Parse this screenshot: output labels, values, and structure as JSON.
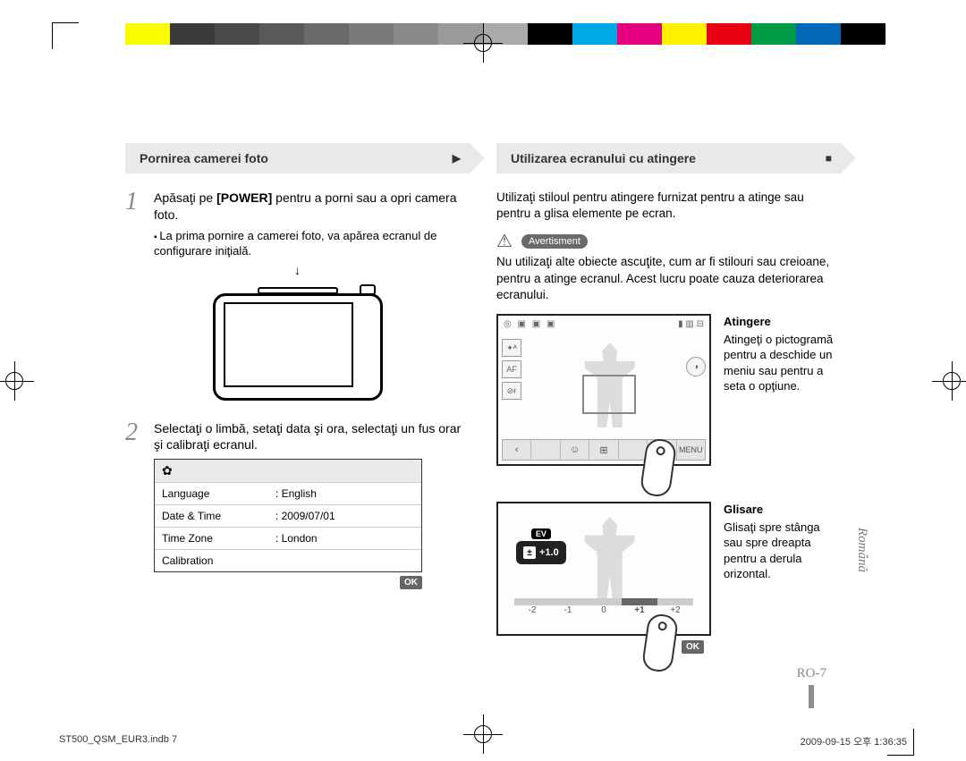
{
  "colorbar": [
    "#ffffff",
    "#fafa00",
    "#3a3a3a",
    "#4a4a4a",
    "#5a5a5a",
    "#6a6a6a",
    "#7a7a7a",
    "#8a8a8a",
    "#9a9a9a",
    "#aaaaaa",
    "#000000",
    "#00a9e6",
    "#e4007f",
    "#fff100",
    "#e60012",
    "#009944",
    "#0068b7",
    "#000000"
  ],
  "left": {
    "ribbon": "Pornirea camerei foto",
    "ribbon_glyph": "▶",
    "step1_num": "1",
    "step1_a": "Apăsaţi pe ",
    "step1_b": "[POWER]",
    "step1_c": " pentru a porni sau a opri camera foto.",
    "bullet1": "La prima pornire a camerei foto, va apărea ecranul de configurare iniţială.",
    "arrow": "↓",
    "step2_num": "2",
    "step2": "Selectaţi o limbă, setaţi data şi ora, selectaţi un fus orar şi calibraţi ecranul.",
    "settings": {
      "gear": "✿",
      "rows": [
        {
          "label": "Language",
          "value": "English"
        },
        {
          "label": "Date & Time",
          "value": "2009/07/01"
        },
        {
          "label": "Time Zone",
          "value": "London"
        },
        {
          "label": "Calibration",
          "value": ""
        }
      ],
      "ok": "OK"
    }
  },
  "right": {
    "ribbon": "Utilizarea ecranului cu atingere",
    "ribbon_glyph": "■",
    "intro": "Utilizaţi stiloul pentru atingere furnizat pentru a atinge sau pentru a glisa elemente pe ecran.",
    "avert_label": "Avertisment",
    "avert_text": "Nu utilizaţi alte obiecte ascuţite, cum ar fi stilouri sau creioane, pentru a atinge ecranul. Acest lucru poate cauza deteriorarea ecranului.",
    "touch": {
      "topicons": "◎ ▣ ▣ ▣",
      "topright": "▮ ▥ ⊟",
      "side": [
        "✦ᴬ",
        "AF",
        "⊘ғ"
      ],
      "rside": "◑",
      "bottom": [
        "‹",
        "",
        "☺",
        "⊞",
        "",
        "◉",
        "MENU"
      ],
      "heading": "Atingere",
      "text": "Atingeţi o pictogramă pentru a deschide un meniu sau pentru a seta o opţiune."
    },
    "swipe": {
      "ev_label": "EV",
      "ev_icon": "±",
      "ev_value": "+1.0",
      "scale": [
        {
          "l": "-2",
          "hot": false
        },
        {
          "l": "-1",
          "hot": false
        },
        {
          "l": "0",
          "hot": false
        },
        {
          "l": "+1",
          "hot": true
        },
        {
          "l": "+2",
          "hot": false
        }
      ],
      "ok": "OK",
      "heading": "Glisare",
      "text": "Glisaţi spre stânga sau spre dreapta pentru a derula orizontal."
    }
  },
  "side_lang": "Română",
  "page_num": "RO-7",
  "footer": {
    "left": "ST500_QSM_EUR3.indb   7",
    "right": "2009-09-15   오후 1:36:35"
  }
}
